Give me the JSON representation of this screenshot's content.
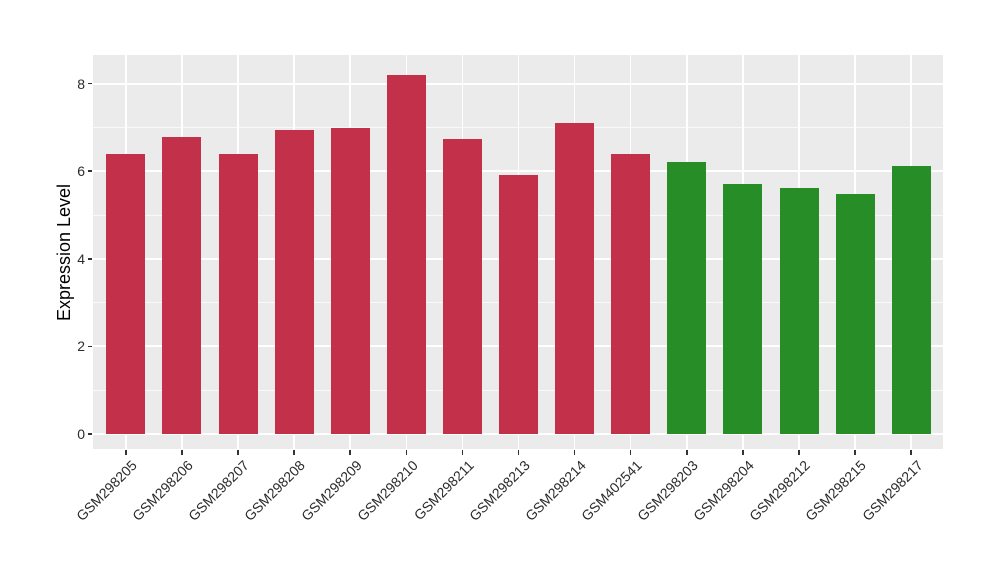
{
  "figure": {
    "ylabel": "Expression Level",
    "colors": {
      "background": "#FFFFFF",
      "panel_background": "#EBEBEB",
      "gridline": "#FFFFFF",
      "tick_mark": "#333333",
      "axis_text": "#2B2B2B",
      "axis_title": "#000000",
      "bar_red": "#C33049",
      "bar_green": "#278E27"
    }
  },
  "chart_data": {
    "type": "bar",
    "title": "",
    "xlabel": "",
    "ylabel": "Expression Level",
    "ylim": [
      0,
      8.65
    ],
    "yticks": [
      0,
      2,
      4,
      6,
      8
    ],
    "yminorticks": [
      1,
      3,
      5,
      7
    ],
    "grid": true,
    "legend": false,
    "x_tick_rotation": 45,
    "categories": [
      "GSM298205",
      "GSM298206",
      "GSM298207",
      "GSM298208",
      "GSM298209",
      "GSM298210",
      "GSM298211",
      "GSM298213",
      "GSM298214",
      "GSM402541",
      "GSM298203",
      "GSM298204",
      "GSM298212",
      "GSM298215",
      "GSM298217"
    ],
    "values": [
      6.4,
      6.78,
      6.4,
      6.93,
      6.99,
      8.19,
      6.73,
      5.92,
      7.09,
      6.4,
      6.21,
      5.71,
      5.62,
      5.48,
      6.13
    ],
    "bar_groups": [
      "red",
      "red",
      "red",
      "red",
      "red",
      "red",
      "red",
      "red",
      "red",
      "red",
      "green",
      "green",
      "green",
      "green",
      "green"
    ]
  }
}
